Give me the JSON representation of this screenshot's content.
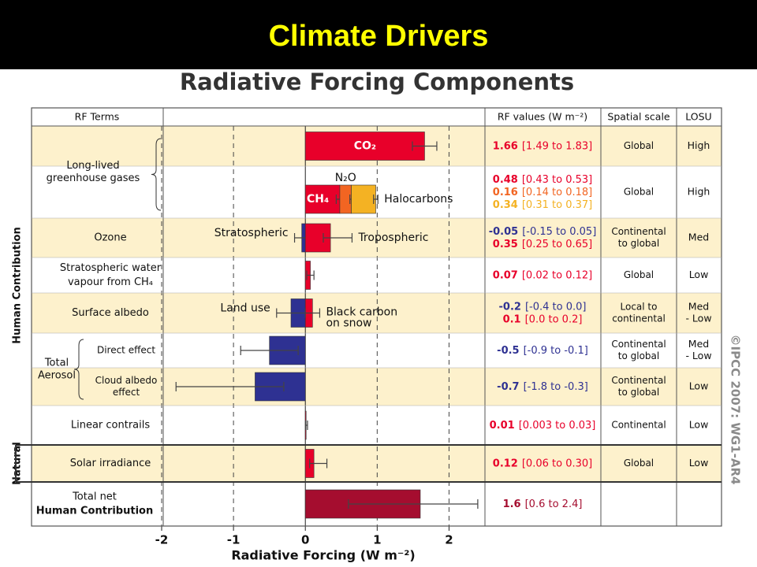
{
  "header": {
    "title": "Climate Drivers"
  },
  "chart_data": {
    "type": "bar",
    "orientation": "horizontal",
    "title": "Radiative Forcing Components",
    "columns": [
      "RF Terms",
      "RF values (W m⁻²)",
      "Spatial scale",
      "LOSU"
    ],
    "xlabel": "Radiative Forcing (W m⁻²)",
    "xlim": [
      -2,
      2.5
    ],
    "xticks": [
      -2,
      -1,
      0,
      1,
      2
    ],
    "grid": "dashed",
    "credit": "©IPCC 2007: WG1-AR4",
    "sections": [
      {
        "label": "Human Contribution",
        "groups": [
          {
            "term": [
              "Long-lived",
              "greenhouse gases"
            ],
            "brace": true,
            "rows": [
              {
                "spatial": [
                  "Global"
                ],
                "losu": [
                  "High"
                ],
                "items": [
                  {
                    "label": [
                      "CO₂"
                    ],
                    "label_side": "inside",
                    "value": 1.66,
                    "low": 1.49,
                    "high": 1.83,
                    "range_label": "[1.49 to 1.83]",
                    "color": "#e8002a"
                  }
                ]
              },
              {
                "stacked": true,
                "spatial": [
                  "Global"
                ],
                "losu": [
                  "High"
                ],
                "items": [
                  {
                    "label": [
                      "CH₄"
                    ],
                    "label_side": "inside",
                    "value": 0.48,
                    "low": 0.43,
                    "high": 0.53,
                    "range_label": "[0.43 to 0.53]",
                    "color": "#e8002a"
                  },
                  {
                    "label": [
                      "N₂O"
                    ],
                    "label_side": "above",
                    "value": 0.16,
                    "low": 0.14,
                    "high": 0.18,
                    "range_label": "[0.14 to 0.18]",
                    "color": "#f26522"
                  },
                  {
                    "label": [
                      "Halocarbons"
                    ],
                    "label_side": "right",
                    "value": 0.34,
                    "low": 0.31,
                    "high": 0.37,
                    "range_label": "[0.31 to 0.37]",
                    "color": "#f4b223"
                  }
                ]
              }
            ]
          },
          {
            "term": [
              "Ozone"
            ],
            "rows": [
              {
                "spatial": [
                  "Continental",
                  "to global"
                ],
                "losu": [
                  "Med"
                ],
                "items": [
                  {
                    "label": [
                      "Stratospheric"
                    ],
                    "label_side": "left",
                    "value": -0.05,
                    "low": -0.15,
                    "high": 0.05,
                    "range_label": "[-0.15 to 0.05]",
                    "color": "#2e3192"
                  },
                  {
                    "label": [
                      "Tropospheric"
                    ],
                    "label_side": "right",
                    "value": 0.35,
                    "low": 0.25,
                    "high": 0.65,
                    "range_label": "[0.25 to 0.65]",
                    "color": "#e8002a"
                  }
                ]
              }
            ]
          },
          {
            "term": [
              "Stratospheric water",
              "vapour from CH₄"
            ],
            "rows": [
              {
                "spatial": [
                  "Global"
                ],
                "losu": [
                  "Low"
                ],
                "items": [
                  {
                    "value": 0.07,
                    "low": 0.02,
                    "high": 0.12,
                    "range_label": "[0.02 to 0.12]",
                    "color": "#e8002a"
                  }
                ]
              }
            ]
          },
          {
            "term": [
              "Surface albedo"
            ],
            "rows": [
              {
                "spatial": [
                  "Local to",
                  "continental"
                ],
                "losu": [
                  "Med",
                  "- Low"
                ],
                "items": [
                  {
                    "label": [
                      "Land use"
                    ],
                    "label_side": "left",
                    "value": -0.2,
                    "low": -0.4,
                    "high": 0,
                    "range_label": "[-0.4 to 0.0]",
                    "color": "#2e3192"
                  },
                  {
                    "label": [
                      "Black carbon",
                      "on snow"
                    ],
                    "label_side": "right",
                    "value": 0.1,
                    "low": 0,
                    "high": 0.2,
                    "range_label": "[0.0 to 0.2]",
                    "color": "#e8002a"
                  }
                ]
              }
            ]
          },
          {
            "term": [
              "Total",
              "Aerosol"
            ],
            "brace": true,
            "rows": [
              {
                "term": [
                  "Direct effect"
                ],
                "spatial": [
                  "Continental",
                  "to global"
                ],
                "losu": [
                  "Med",
                  "- Low"
                ],
                "items": [
                  {
                    "value": -0.5,
                    "low": -0.9,
                    "high": -0.1,
                    "range_label": "[-0.9 to -0.1]",
                    "color": "#2e3192"
                  }
                ]
              },
              {
                "term": [
                  "Cloud albedo",
                  "effect"
                ],
                "spatial": [
                  "Continental",
                  "to global"
                ],
                "losu": [
                  "Low"
                ],
                "items": [
                  {
                    "value": -0.7,
                    "low": -1.8,
                    "high": -0.3,
                    "range_label": "[-1.8 to -0.3]",
                    "color": "#2e3192"
                  }
                ]
              }
            ]
          },
          {
            "term": [
              "Linear contrails"
            ],
            "rows": [
              {
                "spatial": [
                  "Continental"
                ],
                "losu": [
                  "Low"
                ],
                "items": [
                  {
                    "value": 0.01,
                    "low": 0.003,
                    "high": 0.03,
                    "range_label": "[0.003 to 0.03]",
                    "color": "#e8002a"
                  }
                ]
              }
            ]
          }
        ]
      },
      {
        "label": "Natural",
        "groups": [
          {
            "term": [
              "Solar irradiance"
            ],
            "rows": [
              {
                "spatial": [
                  "Global"
                ],
                "losu": [
                  "Low"
                ],
                "items": [
                  {
                    "value": 0.12,
                    "low": 0.06,
                    "high": 0.3,
                    "range_label": "[0.06 to 0.30]",
                    "color": "#e8002a"
                  }
                ]
              }
            ]
          }
        ]
      },
      {
        "groups": [
          {
            "term": [
              "Total net",
              "Human Contribution"
            ],
            "rows": [
              {
                "items": [
                  {
                    "value": 1.6,
                    "low": 0.6,
                    "high": 2.4,
                    "range_label": "[0.6 to 2.4]",
                    "color": "#a50d2f"
                  }
                ]
              }
            ]
          }
        ]
      }
    ]
  }
}
